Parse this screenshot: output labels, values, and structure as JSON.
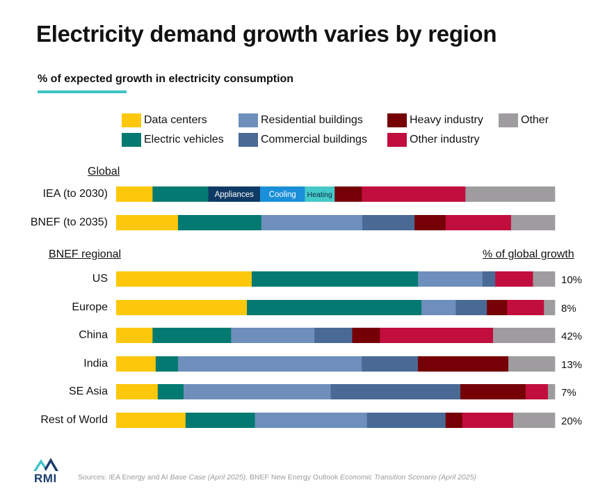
{
  "chart_data": {
    "type": "bar",
    "orientation": "horizontal",
    "stacked": true,
    "normalized_to_100": true,
    "title": "Electricity demand growth varies by region",
    "subtitle": "% of expected growth in electricity consumption",
    "categories_legend": [
      {
        "name": "Data centers",
        "color": "#fdc70c"
      },
      {
        "name": "Residential buildings",
        "color": "#6e8fbb"
      },
      {
        "name": "Heavy industry",
        "color": "#750006"
      },
      {
        "name": "Other",
        "color": "#9f9c9f"
      },
      {
        "name": "Electric vehicles",
        "color": "#027a71"
      },
      {
        "name": "Commercial buildings",
        "color": "#4a6a96"
      },
      {
        "name": "Other industry",
        "color": "#c10e3e"
      }
    ],
    "section_global_label": "Global",
    "section_regional_label": "BNEF regional",
    "share_header": "% of global growth",
    "global_rows": [
      {
        "label": "IEA (to 2030)",
        "segments": [
          {
            "name": "Data centers",
            "value": 8.3,
            "color": "#fdc70c"
          },
          {
            "name": "Electric vehicles",
            "value": 12.7,
            "color": "#027a71"
          },
          {
            "name": "Appliances",
            "value": 11.8,
            "color": "#0f3a65",
            "label": "Appliances"
          },
          {
            "name": "Cooling",
            "value": 10.2,
            "color": "#1a8fd8",
            "label": "Cooling"
          },
          {
            "name": "Heating",
            "value": 6.8,
            "color": "#45c8c8",
            "label": "Heating"
          },
          {
            "name": "Heavy industry",
            "value": 6.2,
            "color": "#750006"
          },
          {
            "name": "Other industry",
            "value": 23.6,
            "color": "#c10e3e"
          },
          {
            "name": "Other",
            "value": 20.4,
            "color": "#9f9c9f"
          }
        ]
      },
      {
        "label": "BNEF (to 2035)",
        "segments": [
          {
            "name": "Data centers",
            "value": 14.1,
            "color": "#fdc70c"
          },
          {
            "name": "Electric vehicles",
            "value": 19.0,
            "color": "#027a71"
          },
          {
            "name": "Residential buildings",
            "value": 23.0,
            "color": "#6e8fbb"
          },
          {
            "name": "Commercial buildings",
            "value": 11.9,
            "color": "#4a6a96"
          },
          {
            "name": "Heavy industry",
            "value": 7.1,
            "color": "#750006"
          },
          {
            "name": "Other industry",
            "value": 14.9,
            "color": "#c10e3e"
          },
          {
            "name": "Other",
            "value": 10.0,
            "color": "#9f9c9f"
          }
        ]
      }
    ],
    "regional_rows": [
      {
        "label": "US",
        "share": "10%",
        "segments": [
          {
            "name": "Data centers",
            "value": 30.9,
            "color": "#fdc70c"
          },
          {
            "name": "Electric vehicles",
            "value": 37.9,
            "color": "#027a71"
          },
          {
            "name": "Residential buildings",
            "value": 14.7,
            "color": "#6e8fbb"
          },
          {
            "name": "Commercial buildings",
            "value": 2.9,
            "color": "#4a6a96"
          },
          {
            "name": "Other industry",
            "value": 8.6,
            "color": "#c10e3e"
          },
          {
            "name": "Other",
            "value": 5.0,
            "color": "#9f9c9f"
          }
        ]
      },
      {
        "label": "Europe",
        "share": "8%",
        "segments": [
          {
            "name": "Data centers",
            "value": 29.8,
            "color": "#fdc70c"
          },
          {
            "name": "Electric vehicles",
            "value": 39.8,
            "color": "#027a71"
          },
          {
            "name": "Residential buildings",
            "value": 7.8,
            "color": "#6e8fbb"
          },
          {
            "name": "Commercial buildings",
            "value": 7.1,
            "color": "#4a6a96"
          },
          {
            "name": "Heavy industry",
            "value": 4.6,
            "color": "#750006"
          },
          {
            "name": "Other industry",
            "value": 8.4,
            "color": "#c10e3e"
          },
          {
            "name": "Other",
            "value": 2.5,
            "color": "#9f9c9f"
          }
        ]
      },
      {
        "label": "China",
        "share": "42%",
        "segments": [
          {
            "name": "Data centers",
            "value": 8.3,
            "color": "#fdc70c"
          },
          {
            "name": "Electric vehicles",
            "value": 17.9,
            "color": "#027a71"
          },
          {
            "name": "Residential buildings",
            "value": 19.0,
            "color": "#6e8fbb"
          },
          {
            "name": "Commercial buildings",
            "value": 8.6,
            "color": "#4a6a96"
          },
          {
            "name": "Heavy industry",
            "value": 6.3,
            "color": "#750006"
          },
          {
            "name": "Other industry",
            "value": 25.8,
            "color": "#c10e3e"
          },
          {
            "name": "Other",
            "value": 14.1,
            "color": "#9f9c9f"
          }
        ]
      },
      {
        "label": "India",
        "share": "13%",
        "segments": [
          {
            "name": "Data centers",
            "value": 9.0,
            "color": "#fdc70c"
          },
          {
            "name": "Electric vehicles",
            "value": 5.1,
            "color": "#027a71"
          },
          {
            "name": "Residential buildings",
            "value": 41.8,
            "color": "#6e8fbb"
          },
          {
            "name": "Commercial buildings",
            "value": 12.8,
            "color": "#4a6a96"
          },
          {
            "name": "Heavy industry",
            "value": 20.6,
            "color": "#750006"
          },
          {
            "name": "Other",
            "value": 10.6,
            "color": "#9f9c9f"
          }
        ]
      },
      {
        "label": "SE Asia",
        "share": "7%",
        "segments": [
          {
            "name": "Data centers",
            "value": 9.5,
            "color": "#fdc70c"
          },
          {
            "name": "Electric vehicles",
            "value": 5.9,
            "color": "#027a71"
          },
          {
            "name": "Residential buildings",
            "value": 33.6,
            "color": "#6e8fbb"
          },
          {
            "name": "Commercial buildings",
            "value": 29.6,
            "color": "#4a6a96"
          },
          {
            "name": "Heavy industry",
            "value": 14.9,
            "color": "#750006"
          },
          {
            "name": "Other industry",
            "value": 5.1,
            "color": "#c10e3e"
          },
          {
            "name": "Other",
            "value": 1.6,
            "color": "#9f9c9f"
          }
        ]
      },
      {
        "label": "Rest of World",
        "share": "20%",
        "segments": [
          {
            "name": "Data centers",
            "value": 15.8,
            "color": "#fdc70c"
          },
          {
            "name": "Electric vehicles",
            "value": 15.8,
            "color": "#027a71"
          },
          {
            "name": "Residential buildings",
            "value": 25.5,
            "color": "#6e8fbb"
          },
          {
            "name": "Commercial buildings",
            "value": 17.9,
            "color": "#4a6a96"
          },
          {
            "name": "Heavy industry",
            "value": 3.8,
            "color": "#750006"
          },
          {
            "name": "Other industry",
            "value": 11.6,
            "color": "#c10e3e"
          },
          {
            "name": "Other",
            "value": 9.5,
            "color": "#9f9c9f"
          }
        ]
      }
    ]
  },
  "footer": {
    "source_prefix": "Sources: ",
    "source_iea": "IEA Energy and AI",
    "source_iea_case": " Base Case (April 2025),",
    "source_bnef": " BNEF New Energy Outlook",
    "source_bnef_scenario": " Economic Transition Scenario (April 2025)",
    "logo_text": "RMI"
  },
  "colors": {
    "accent_teal": "#3cc3c6",
    "logo_navy": "#1b3d6d",
    "logo_teal": "#3cc3c6"
  }
}
